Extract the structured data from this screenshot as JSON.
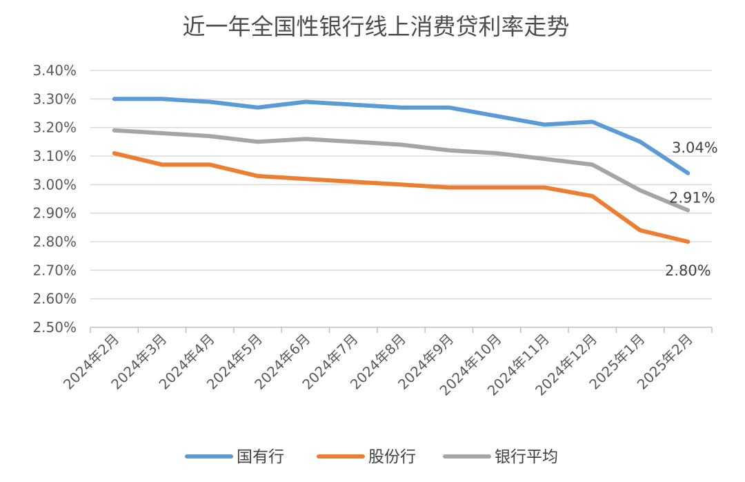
{
  "chart_data": {
    "type": "line",
    "title": "近一年全国性银行线上消费贷利率走势",
    "xlabel": "",
    "ylabel": "",
    "ylim": [
      2.5,
      3.4
    ],
    "y_ticks": [
      "2.50%",
      "2.60%",
      "2.70%",
      "2.80%",
      "2.90%",
      "3.00%",
      "3.10%",
      "3.20%",
      "3.30%",
      "3.40%"
    ],
    "grid": true,
    "legend_position": "bottom",
    "categories": [
      "2024年2月",
      "2024年3月",
      "2024年4月",
      "2024年5月",
      "2024年6月",
      "2024年7月",
      "2024年8月",
      "2024年9月",
      "2024年10月",
      "2024年11月",
      "2024年12月",
      "2025年1月",
      "2025年2月"
    ],
    "series": [
      {
        "name": "国有行",
        "color": "#5B9BD5",
        "values": [
          3.3,
          3.3,
          3.29,
          3.27,
          3.29,
          3.28,
          3.27,
          3.27,
          3.24,
          3.21,
          3.22,
          3.15,
          3.04
        ],
        "end_label": "3.04%"
      },
      {
        "name": "股份行",
        "color": "#ED7D31",
        "values": [
          3.11,
          3.07,
          3.07,
          3.03,
          3.02,
          3.01,
          3.0,
          2.99,
          2.99,
          2.99,
          2.96,
          2.84,
          2.8
        ],
        "end_label": "2.80%"
      },
      {
        "name": "银行平均",
        "color": "#A5A5A5",
        "values": [
          3.19,
          3.18,
          3.17,
          3.15,
          3.16,
          3.15,
          3.14,
          3.12,
          3.11,
          3.09,
          3.07,
          2.98,
          2.91
        ],
        "end_label": "2.91%"
      }
    ]
  }
}
